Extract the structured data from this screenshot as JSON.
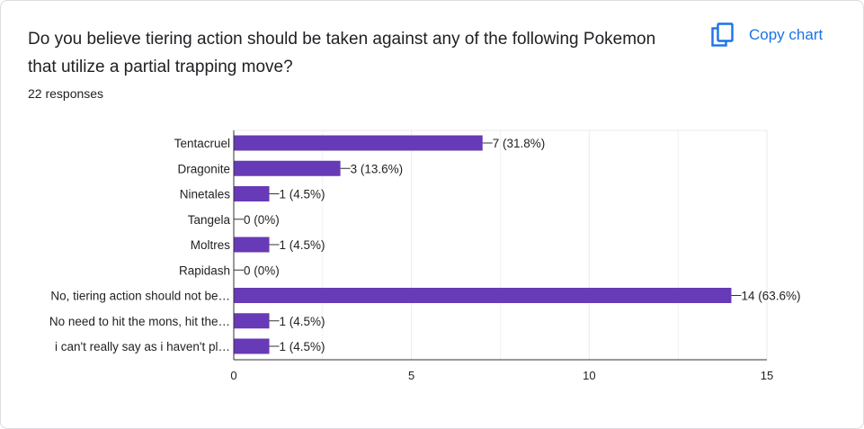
{
  "card": {
    "title": "Do you believe tiering action should be taken against any of the following Pokemon that utilize a partial trapping move?",
    "responses": "22 responses",
    "copy_label": "Copy chart",
    "copy_icon": "copy-icon"
  },
  "colors": {
    "bar": "#673ab7",
    "link": "#1a73e8",
    "grid": "#e8eaed",
    "axis": "#333333",
    "text": "#222222"
  },
  "chart_data": {
    "type": "bar",
    "orientation": "horizontal",
    "title": "",
    "xlabel": "",
    "ylabel": "",
    "xlim": [
      0,
      15
    ],
    "x_ticks": [
      0,
      5,
      10,
      15
    ],
    "grid": true,
    "categories": [
      "Tentacruel",
      "Dragonite",
      "Ninetales",
      "Tangela",
      "Moltres",
      "Rapidash",
      "No, tiering action should not be…",
      "No need to hit the mons, hit the…",
      "i can't really say as i haven't pl…"
    ],
    "values": [
      7,
      3,
      1,
      0,
      1,
      0,
      14,
      1,
      1
    ],
    "data_labels": [
      "7 (31.8%)",
      "3 (13.6%)",
      "1 (4.5%)",
      "0 (0%)",
      "1 (4.5%)",
      "0 (0%)",
      "14 (63.6%)",
      "1 (4.5%)",
      "1 (4.5%)"
    ]
  }
}
